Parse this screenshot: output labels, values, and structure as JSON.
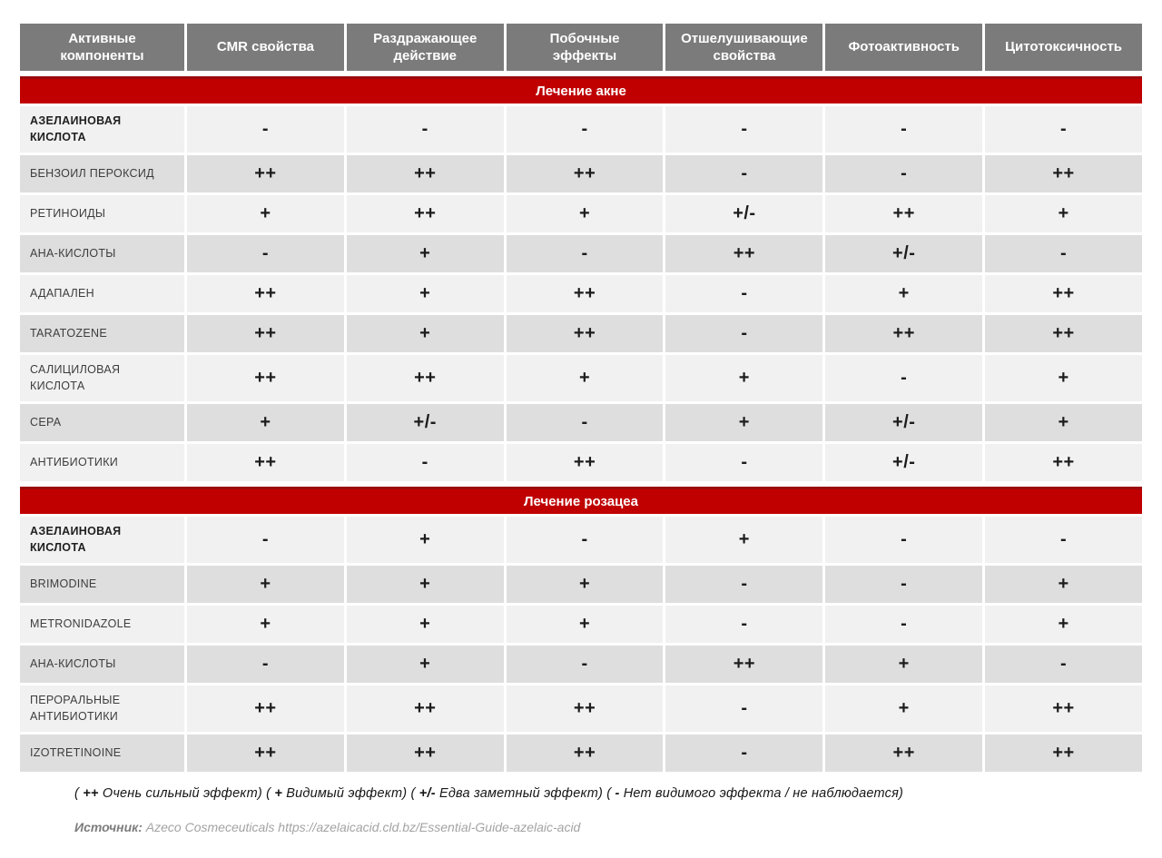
{
  "colors": {
    "accent_red": "#c00000",
    "accent_red_dark": "#9a0b0d",
    "header_gray": "#7b7b7b",
    "row_light": "#f1f1f2",
    "row_dark": "#dedede"
  },
  "table": {
    "columns": [
      "Активные\nкомпоненты",
      "CMR свойства",
      "Раздражающее\nдействие",
      "Побочные\nэффекты",
      "Отшелушивающие\nсвойства",
      "Фотоактивность",
      "Цитотоксичность"
    ],
    "sections": [
      {
        "title": "Лечение акне",
        "rows": [
          {
            "label": "АЗЕЛАИНОВАЯ\nКИСЛОТА",
            "bold": true,
            "values": [
              "-",
              "-",
              "-",
              "-",
              "-",
              "-"
            ]
          },
          {
            "label": "БЕНЗОИЛ ПЕРОКСИД",
            "bold": false,
            "values": [
              "++",
              "++",
              "++",
              "-",
              "-",
              "++"
            ]
          },
          {
            "label": "РЕТИНОИДЫ",
            "bold": false,
            "values": [
              "+",
              "++",
              "+",
              "+/-",
              "++",
              "+"
            ]
          },
          {
            "label": "АНА-КИСЛОТЫ",
            "bold": false,
            "values": [
              "-",
              "+",
              "-",
              "++",
              "+/-",
              "-"
            ]
          },
          {
            "label": "АДАПАЛЕН",
            "bold": false,
            "values": [
              "++",
              "+",
              "++",
              "-",
              "+",
              "++"
            ]
          },
          {
            "label": "TARATOZENE",
            "bold": false,
            "values": [
              "++",
              "+",
              "++",
              "-",
              "++",
              "++"
            ]
          },
          {
            "label": "САЛИЦИЛОВАЯ\nКИСЛОТА",
            "bold": false,
            "values": [
              "++",
              "++",
              "+",
              "+",
              "-",
              "+"
            ]
          },
          {
            "label": "СЕРА",
            "bold": false,
            "values": [
              "+",
              "+/-",
              "-",
              "+",
              "+/-",
              "+"
            ]
          },
          {
            "label": "АНТИБИОТИКИ",
            "bold": false,
            "values": [
              "++",
              "-",
              "++",
              "-",
              "+/-",
              "++"
            ]
          }
        ]
      },
      {
        "title": "Лечение розацеа",
        "rows": [
          {
            "label": "АЗЕЛАИНОВАЯ\nКИСЛОТА",
            "bold": true,
            "values": [
              "-",
              "+",
              "-",
              "+",
              "-",
              "-"
            ]
          },
          {
            "label": "BRIMODINE",
            "bold": false,
            "values": [
              "+",
              "+",
              "+",
              "-",
              "-",
              "+"
            ]
          },
          {
            "label": "METRONIDAZOLE",
            "bold": false,
            "values": [
              "+",
              "+",
              "+",
              "-",
              "-",
              "+"
            ]
          },
          {
            "label": "АНА-КИСЛОТЫ",
            "bold": false,
            "values": [
              "-",
              "+",
              "-",
              "++",
              "+",
              "-"
            ]
          },
          {
            "label": "ПЕРОРАЛЬНЫЕ\nАНТИБИОТИКИ",
            "bold": false,
            "values": [
              "++",
              "++",
              "++",
              "-",
              "+",
              "++"
            ]
          },
          {
            "label": "IZOTRETINOINE",
            "bold": false,
            "values": [
              "++",
              "++",
              "++",
              "-",
              "++",
              "++"
            ]
          }
        ]
      }
    ]
  },
  "legend": {
    "items": [
      {
        "symbol": "++",
        "text": "Очень сильный эффект"
      },
      {
        "symbol": "+",
        "text": "Видимый эффект"
      },
      {
        "symbol": "+/-",
        "text": "Едва заметный эффект"
      },
      {
        "symbol": "-",
        "text": "Нет видимого эффекта / не наблюдается"
      }
    ]
  },
  "source": {
    "label": "Источник:",
    "text": "Azeco Cosmeceuticals https://azelaicacid.cld.bz/Essential-Guide-azelaic-acid"
  }
}
